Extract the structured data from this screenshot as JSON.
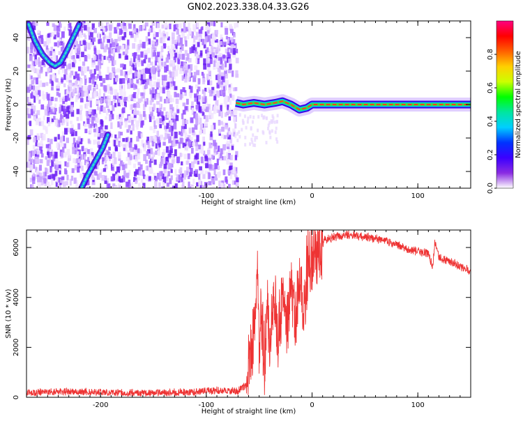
{
  "title": "GN02.2023.338.04.33.G26",
  "chart_data": [
    {
      "type": "heatmap",
      "title": "GN02.2023.338.04.33.G26",
      "xlabel": "Height of straight line (km)",
      "ylabel": "Frequency (Hz)",
      "xlim": [
        -270,
        150
      ],
      "ylim": [
        -50,
        50
      ],
      "xticks": [
        -200,
        -100,
        0,
        100
      ],
      "xtick_labels": [
        "-200",
        "-100",
        "0",
        "100"
      ],
      "yticks": [
        -40,
        -20,
        0,
        20,
        40
      ],
      "ytick_labels": [
        "-40",
        "-20",
        "0",
        "20",
        "40"
      ],
      "noise_region_x": [
        -270,
        -72
      ],
      "noise_region_note": "",
      "arc_upper_left": [
        [
          -268,
          48
        ],
        [
          -262,
          38
        ],
        [
          -255,
          30
        ],
        [
          -248,
          25
        ],
        [
          -243,
          23
        ],
        [
          -238,
          25
        ],
        [
          -232,
          32
        ],
        [
          -226,
          40
        ],
        [
          -220,
          48
        ]
      ],
      "arc_lower_left": [
        [
          -218,
          -50
        ],
        [
          -212,
          -42
        ],
        [
          -205,
          -34
        ],
        [
          -198,
          -26
        ],
        [
          -193,
          -18
        ]
      ],
      "signal_line": [
        [
          -72,
          1
        ],
        [
          -65,
          0
        ],
        [
          -55,
          1
        ],
        [
          -45,
          0
        ],
        [
          -35,
          1
        ],
        [
          -28,
          2
        ],
        [
          -20,
          0
        ],
        [
          -12,
          -3
        ],
        [
          -5,
          -2
        ],
        [
          0,
          0
        ],
        [
          50,
          0
        ],
        [
          100,
          0
        ],
        [
          150,
          0
        ]
      ],
      "colorbar": {
        "label": "Normalized spectral amplitude",
        "ticks": [
          0.0,
          0.2,
          0.4,
          0.6,
          0.8
        ],
        "tick_labels": [
          "0.0",
          "0.2",
          "0.4",
          "0.6",
          "0.8"
        ],
        "colors": [
          "#ffffff",
          "#8a2be2",
          "#3b00ff",
          "#0033ff",
          "#00cfff",
          "#00e6a0",
          "#00ff00",
          "#ccff00",
          "#ffd000",
          "#ff6000",
          "#ff0000",
          "#ff0080"
        ]
      },
      "grid": false,
      "legend": "none"
    },
    {
      "type": "line",
      "xlabel": "Height of straight line (km)",
      "ylabel": "SNR (10 * v/v)",
      "xlim": [
        -270,
        150
      ],
      "ylim": [
        0,
        6700
      ],
      "xticks": [
        -200,
        -100,
        0,
        100
      ],
      "xtick_labels": [
        "-200",
        "-100",
        "0",
        "100"
      ],
      "yticks": [
        0,
        2000,
        4000,
        6000
      ],
      "ytick_labels": [
        "0",
        "2000",
        "4000",
        "6000"
      ],
      "line_color": "#ee3333",
      "series": [
        {
          "x": [
            -270,
            -240,
            -210,
            -180,
            -150,
            -120,
            -100,
            -90,
            -80,
            -70,
            -62,
            -58,
            -55,
            -52,
            -50,
            -48,
            -45,
            -42,
            -40,
            -36,
            -32,
            -28,
            -24,
            -20,
            -16,
            -12,
            -8,
            -4,
            0,
            4,
            8,
            12,
            16,
            20,
            25,
            30,
            35,
            40,
            45,
            50,
            60,
            70,
            80,
            90,
            100,
            110,
            114,
            116,
            120,
            130,
            140,
            150
          ],
          "y": [
            180,
            220,
            220,
            180,
            180,
            200,
            250,
            280,
            260,
            260,
            500,
            1600,
            2500,
            5200,
            1800,
            3200,
            1400,
            3800,
            1900,
            4000,
            2200,
            4400,
            2500,
            4600,
            2800,
            5000,
            3300,
            5300,
            5400,
            5700,
            6000,
            6300,
            6350,
            6400,
            6450,
            6480,
            6500,
            6500,
            6450,
            6420,
            6350,
            6250,
            6100,
            5950,
            5850,
            5750,
            5200,
            6200,
            5600,
            5450,
            5250,
            5050
          ]
        }
      ],
      "grid": false,
      "legend": "none"
    }
  ]
}
